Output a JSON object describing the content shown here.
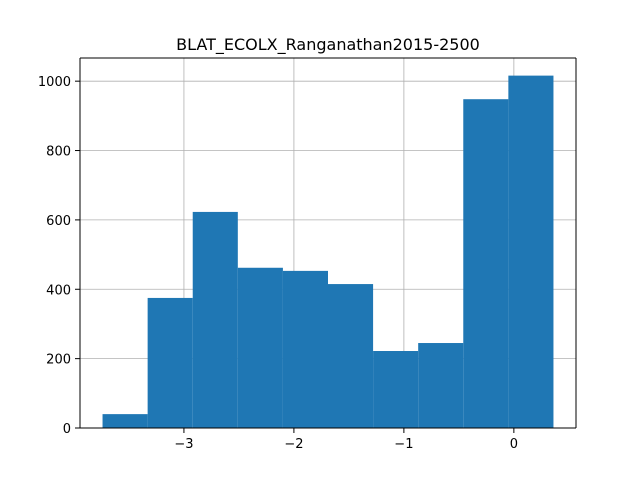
{
  "chart_data": {
    "type": "bar",
    "title": "BLAT_ECOLX_Ranganathan2015-2500",
    "xlabel": "",
    "ylabel": "",
    "bins": [
      {
        "x0": -3.74,
        "x1": -3.33,
        "value": 40
      },
      {
        "x0": -3.33,
        "x1": -2.92,
        "value": 375
      },
      {
        "x0": -2.92,
        "x1": -2.51,
        "value": 623
      },
      {
        "x0": -2.51,
        "x1": -2.1,
        "value": 462
      },
      {
        "x0": -2.1,
        "x1": -1.69,
        "value": 453
      },
      {
        "x0": -1.69,
        "x1": -1.28,
        "value": 415
      },
      {
        "x0": -1.28,
        "x1": -0.87,
        "value": 222
      },
      {
        "x0": -0.87,
        "x1": -0.46,
        "value": 245
      },
      {
        "x0": -0.46,
        "x1": -0.05,
        "value": 948
      },
      {
        "x0": -0.05,
        "x1": 0.36,
        "value": 1016
      }
    ],
    "xlim": [
      -3.945,
      0.565
    ],
    "ylim": [
      0,
      1066.8
    ],
    "x_ticks": [
      {
        "value": -3,
        "label": "−3"
      },
      {
        "value": -2,
        "label": "−2"
      },
      {
        "value": -1,
        "label": "−1"
      },
      {
        "value": 0,
        "label": "0"
      }
    ],
    "y_ticks": [
      {
        "value": 0,
        "label": "0"
      },
      {
        "value": 200,
        "label": "200"
      },
      {
        "value": 400,
        "label": "400"
      },
      {
        "value": 600,
        "label": "600"
      },
      {
        "value": 800,
        "label": "800"
      },
      {
        "value": 1000,
        "label": "1000"
      }
    ],
    "grid": true,
    "bar_color": "#1f77b4",
    "grid_color": "#b0b0b0"
  }
}
